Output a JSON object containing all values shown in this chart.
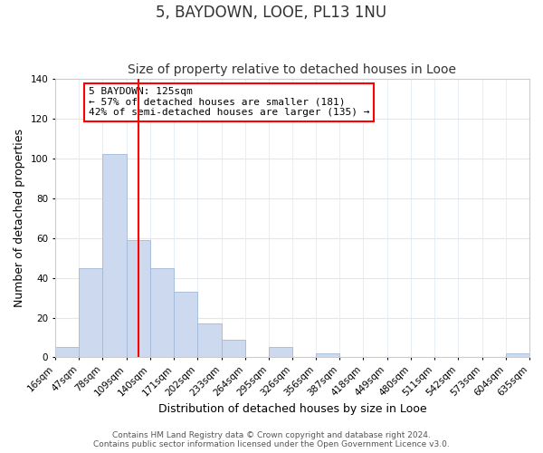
{
  "title": "5, BAYDOWN, LOOE, PL13 1NU",
  "subtitle": "Size of property relative to detached houses in Looe",
  "xlabel": "Distribution of detached houses by size in Looe",
  "ylabel": "Number of detached properties",
  "bar_color": "#ccd9ee",
  "bar_edge_color": "#a0b8d8",
  "bin_labels": [
    "16sqm",
    "47sqm",
    "78sqm",
    "109sqm",
    "140sqm",
    "171sqm",
    "202sqm",
    "233sqm",
    "264sqm",
    "295sqm",
    "326sqm",
    "356sqm",
    "387sqm",
    "418sqm",
    "449sqm",
    "480sqm",
    "511sqm",
    "542sqm",
    "573sqm",
    "604sqm",
    "635sqm"
  ],
  "bar_heights": [
    5,
    45,
    102,
    59,
    45,
    33,
    17,
    9,
    0,
    5,
    0,
    2,
    0,
    0,
    0,
    0,
    0,
    0,
    0,
    2
  ],
  "bin_edges": [
    16,
    47,
    78,
    109,
    140,
    171,
    202,
    233,
    264,
    295,
    326,
    356,
    387,
    418,
    449,
    480,
    511,
    542,
    573,
    604,
    635
  ],
  "red_line_x": 125,
  "ylim": [
    0,
    140
  ],
  "yticks": [
    0,
    20,
    40,
    60,
    80,
    100,
    120,
    140
  ],
  "annotation_title": "5 BAYDOWN: 125sqm",
  "annotation_line1": "← 57% of detached houses are smaller (181)",
  "annotation_line2": "42% of semi-detached houses are larger (135) →",
  "footer_line1": "Contains HM Land Registry data © Crown copyright and database right 2024.",
  "footer_line2": "Contains public sector information licensed under the Open Government Licence v3.0.",
  "background_color": "#ffffff",
  "grid_color": "#dde8f2",
  "title_fontsize": 12,
  "subtitle_fontsize": 10,
  "axis_label_fontsize": 9,
  "tick_fontsize": 7.5,
  "annotation_fontsize": 8,
  "footer_fontsize": 6.5
}
